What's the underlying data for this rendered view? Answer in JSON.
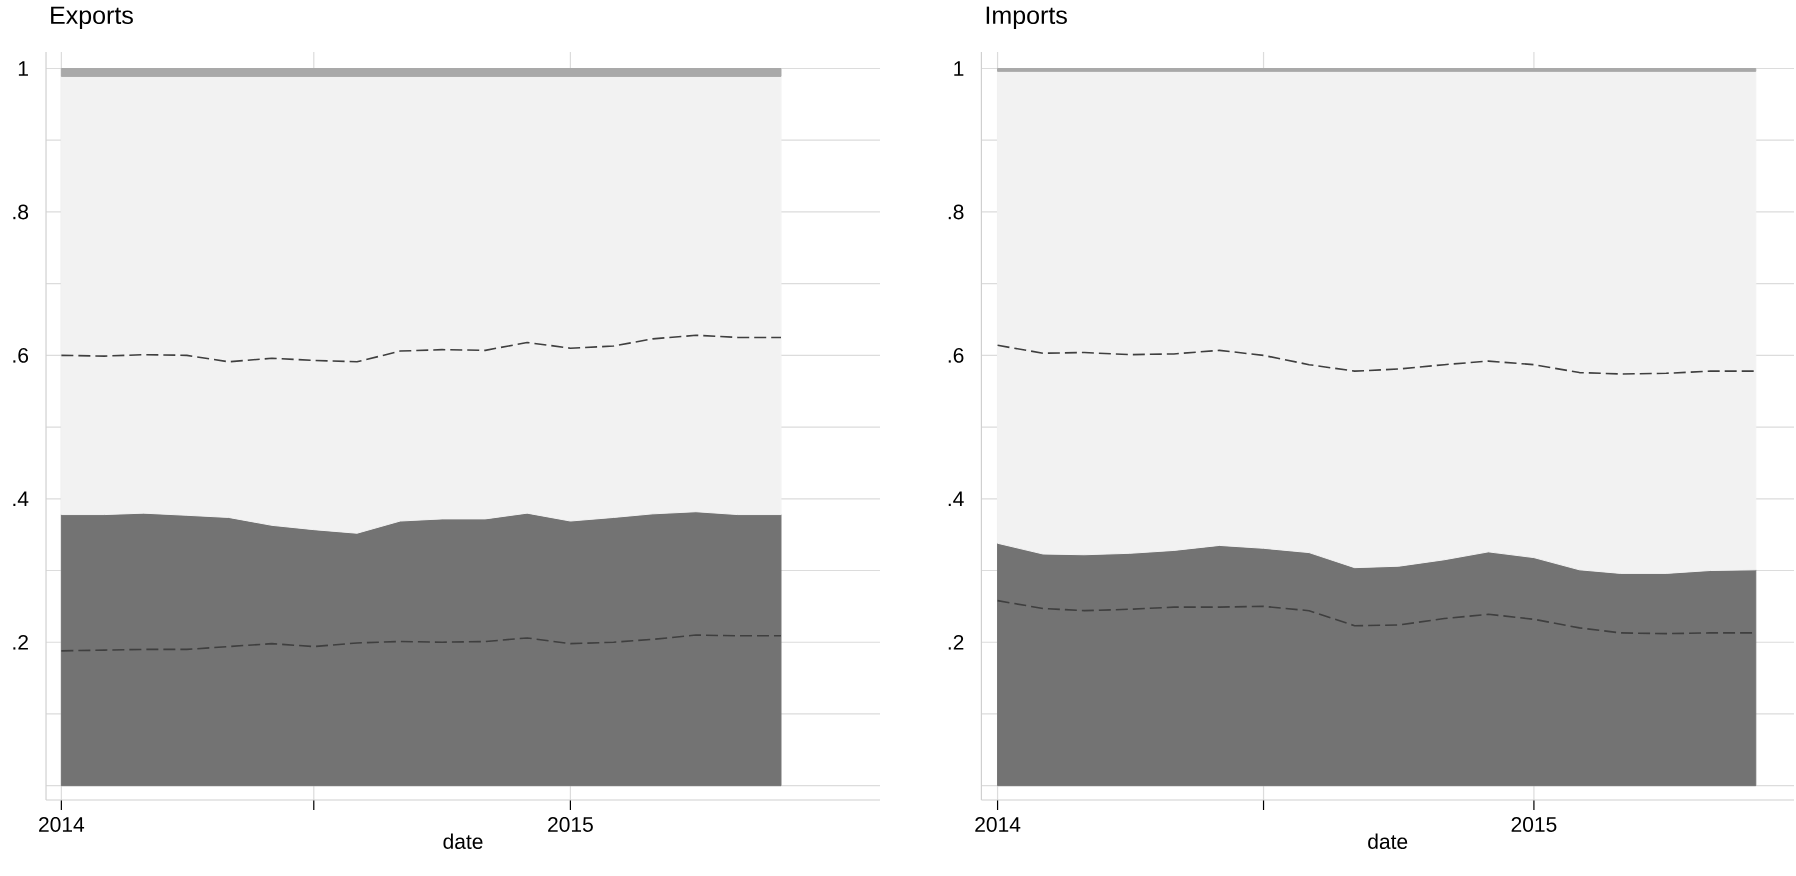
{
  "chart_data": [
    {
      "type": "area",
      "title": "Exports",
      "xlabel": "date",
      "stacked": true,
      "grid": true,
      "x": [
        "2014-01",
        "2014-02",
        "2014-03",
        "2014-04",
        "2014-05",
        "2014-06",
        "2014-07",
        "2014-08",
        "2014-09",
        "2014-10",
        "2014-11",
        "2014-12",
        "2015-01",
        "2015-02",
        "2015-03",
        "2015-04",
        "2015-05",
        "2015-06"
      ],
      "xlim": [
        "2013-12-21",
        "2015-08-11"
      ],
      "xticks": [
        {
          "value": "2014-01",
          "label": "2014"
        },
        {
          "value": "2014-07",
          "label": null
        },
        {
          "value": "2015-01",
          "label": "2015"
        }
      ],
      "ylim": [
        -0.02,
        1.023
      ],
      "yticks": [
        {
          "value": 0,
          "label": null
        },
        {
          "value": 0.1,
          "label": null
        },
        {
          "value": 0.2,
          "label": ".2"
        },
        {
          "value": 0.3,
          "label": null
        },
        {
          "value": 0.4,
          "label": ".4"
        },
        {
          "value": 0.5,
          "label": null
        },
        {
          "value": 0.6,
          "label": ".6"
        },
        {
          "value": 0.7,
          "label": null
        },
        {
          "value": 0.8,
          "label": ".8"
        },
        {
          "value": 0.9,
          "label": null
        },
        1
      ],
      "series": [
        {
          "color": "#737373",
          "values": [
            0.378,
            0.378,
            0.38,
            0.377,
            0.374,
            0.363,
            0.357,
            0.352,
            0.369,
            0.372,
            0.372,
            0.38,
            0.369,
            0.374,
            0.379,
            0.382,
            0.378,
            0.378
          ]
        },
        {
          "color": "#f2f2f2",
          "values": [
            0.611,
            0.611,
            0.609,
            0.612,
            0.615,
            0.626,
            0.632,
            0.637,
            0.62,
            0.617,
            0.617,
            0.609,
            0.62,
            0.615,
            0.61,
            0.607,
            0.611,
            0.611
          ]
        },
        {
          "color": "#a9a9a9",
          "values": [
            0.011,
            0.011,
            0.011,
            0.011,
            0.011,
            0.011,
            0.011,
            0.011,
            0.011,
            0.011,
            0.011,
            0.011,
            0.011,
            0.011,
            0.011,
            0.011,
            0.011,
            0.011
          ]
        },
        {
          "type": "line",
          "line_style": "dashed",
          "color": "#3f3f3f",
          "values": [
            0.6,
            0.599,
            0.601,
            0.6,
            0.591,
            0.596,
            0.593,
            0.591,
            0.606,
            0.608,
            0.607,
            0.618,
            0.61,
            0.613,
            0.623,
            0.628,
            0.625,
            0.625
          ]
        },
        {
          "type": "line",
          "line_style": "dashed",
          "color": "#3f3f3f",
          "values": [
            0.188,
            0.189,
            0.19,
            0.19,
            0.194,
            0.198,
            0.194,
            0.199,
            0.201,
            0.2,
            0.201,
            0.206,
            0.198,
            0.2,
            0.204,
            0.21,
            0.209,
            0.209
          ]
        }
      ]
    },
    {
      "type": "area",
      "title": "Imports",
      "xlabel": "date",
      "stacked": true,
      "grid": true,
      "x": [
        "2014-01",
        "2014-02",
        "2014-03",
        "2014-04",
        "2014-05",
        "2014-06",
        "2014-07",
        "2014-08",
        "2014-09",
        "2014-10",
        "2014-11",
        "2014-12",
        "2015-01",
        "2015-02",
        "2015-03",
        "2015-04",
        "2015-05",
        "2015-06"
      ],
      "xlim": [
        "2013-12-21",
        "2015-06-27"
      ],
      "xticks": [
        {
          "value": "2014-01",
          "label": "2014"
        },
        {
          "value": "2014-07",
          "label": null
        },
        {
          "value": "2015-01",
          "label": "2015"
        }
      ],
      "ylim": [
        -0.02,
        1.023
      ],
      "yticks": [
        {
          "value": 0,
          "label": null
        },
        {
          "value": 0.1,
          "label": null
        },
        {
          "value": 0.2,
          "label": ".2"
        },
        {
          "value": 0.3,
          "label": null
        },
        {
          "value": 0.4,
          "label": ".4"
        },
        {
          "value": 0.5,
          "label": null
        },
        {
          "value": 0.6,
          "label": ".6"
        },
        {
          "value": 0.7,
          "label": null
        },
        {
          "value": 0.8,
          "label": ".8"
        },
        {
          "value": 0.9,
          "label": null
        },
        1
      ],
      "series": [
        {
          "color": "#737373",
          "values": [
            0.338,
            0.323,
            0.322,
            0.324,
            0.328,
            0.335,
            0.331,
            0.325,
            0.304,
            0.306,
            0.315,
            0.326,
            0.318,
            0.301,
            0.296,
            0.296,
            0.3,
            0.301
          ]
        },
        {
          "color": "#f2f2f2",
          "values": [
            0.658,
            0.673,
            0.674,
            0.672,
            0.668,
            0.661,
            0.665,
            0.671,
            0.692,
            0.69,
            0.681,
            0.67,
            0.678,
            0.695,
            0.7,
            0.7,
            0.696,
            0.695
          ]
        },
        {
          "color": "#a9a9a9",
          "values": [
            0.004,
            0.004,
            0.004,
            0.004,
            0.004,
            0.004,
            0.004,
            0.004,
            0.004,
            0.004,
            0.004,
            0.004,
            0.004,
            0.004,
            0.004,
            0.004,
            0.004,
            0.004
          ]
        },
        {
          "type": "line",
          "line_style": "dashed",
          "color": "#3f3f3f",
          "values": [
            0.614,
            0.603,
            0.604,
            0.601,
            0.602,
            0.607,
            0.6,
            0.587,
            0.578,
            0.581,
            0.587,
            0.592,
            0.587,
            0.576,
            0.574,
            0.575,
            0.578,
            0.578
          ]
        },
        {
          "type": "line",
          "line_style": "dashed",
          "color": "#3f3f3f",
          "values": [
            0.258,
            0.247,
            0.244,
            0.246,
            0.249,
            0.249,
            0.25,
            0.244,
            0.223,
            0.224,
            0.233,
            0.239,
            0.232,
            0.22,
            0.213,
            0.212,
            0.213,
            0.213
          ]
        }
      ]
    }
  ]
}
